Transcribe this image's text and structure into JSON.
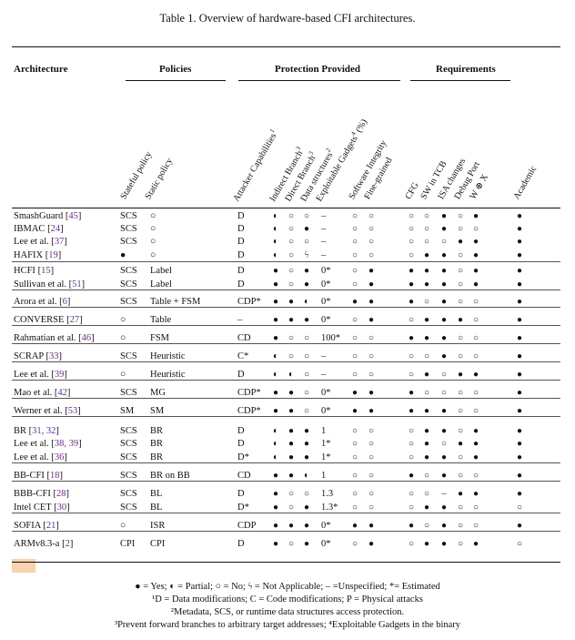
{
  "caption": "Table 1.  Overview of hardware-based CFI architectures.",
  "groups": [
    "Architecture",
    "Policies",
    "Protection Provided",
    "Requirements"
  ],
  "columns": [
    {
      "key": "stateful",
      "label": "Stateful policy"
    },
    {
      "key": "static",
      "label": "Static policy"
    },
    {
      "key": "atk",
      "label": "Attacker Capabilities",
      "sup": "1"
    },
    {
      "key": "ib",
      "label": "Indirect Branch",
      "sup": "3"
    },
    {
      "key": "db",
      "label": "Direct Branch",
      "sup": "3"
    },
    {
      "key": "ds",
      "label": "Data structures",
      "sup": "2"
    },
    {
      "key": "eg",
      "label": "Exploitable Gadgets",
      "sup": "4",
      "suffix": " (%)"
    },
    {
      "key": "si",
      "label": "Software Integrity"
    },
    {
      "key": "fg",
      "label": "Fine-grained"
    },
    {
      "key": "cfg",
      "label": "CFG"
    },
    {
      "key": "sw",
      "label": "SW in TCB"
    },
    {
      "key": "isa",
      "label": "ISA changes"
    },
    {
      "key": "dbg",
      "label": "Debug Port"
    },
    {
      "key": "wx",
      "label": "W ⊕ X"
    },
    {
      "key": "ac",
      "label": "Academic"
    }
  ],
  "rows": [
    {
      "name": "SmashGuard",
      "ref": "45",
      "stateful": "SCS",
      "static": "○",
      "atk": "D",
      "ib": "◐",
      "db": "○",
      "ds": "○",
      "eg": "–",
      "si": "○",
      "fg": "○",
      "req": [
        "○",
        "○",
        "●",
        "○",
        "●"
      ],
      "ac": "●"
    },
    {
      "name": "IBMAC",
      "ref": "24",
      "stateful": "SCS",
      "static": "○",
      "atk": "D",
      "ib": "◐",
      "db": "○",
      "ds": "●",
      "eg": "–",
      "si": "○",
      "fg": "○",
      "req": [
        "○",
        "○",
        "●",
        "○",
        "○"
      ],
      "ac": "●"
    },
    {
      "name": "Lee et al.",
      "ref": "37",
      "stateful": "SCS",
      "static": "○",
      "atk": "D",
      "ib": "◐",
      "db": "○",
      "ds": "○",
      "eg": "–",
      "si": "○",
      "fg": "○",
      "req": [
        "○",
        "○",
        "○",
        "●",
        "●"
      ],
      "ac": "●"
    },
    {
      "name": "HAFIX",
      "ref": "19",
      "stateful": "●",
      "static": "○",
      "atk": "D",
      "ib": "◐",
      "db": "○",
      "ds": "ϟ",
      "eg": "–",
      "si": "○",
      "fg": "○",
      "req": [
        "○",
        "●",
        "●",
        "○",
        "●"
      ],
      "ac": "●"
    },
    {
      "name": "HCFI",
      "ref": "15",
      "stateful": "SCS",
      "static": "Label",
      "atk": "D",
      "ib": "●",
      "db": "○",
      "ds": "●",
      "eg": "0*",
      "si": "○",
      "fg": "●",
      "req": [
        "●",
        "●",
        "●",
        "○",
        "●"
      ],
      "ac": "●"
    },
    {
      "name": "Sullivan et al.",
      "ref": "51",
      "stateful": "SCS",
      "static": "Label",
      "atk": "D",
      "ib": "●",
      "db": "○",
      "ds": "●",
      "eg": "0*",
      "si": "○",
      "fg": "●",
      "req": [
        "●",
        "●",
        "●",
        "○",
        "●"
      ],
      "ac": "●"
    },
    {
      "name": "Arora et al.",
      "ref": "6",
      "stateful": "SCS",
      "static": "Table + FSM",
      "atk": "CDP*",
      "ib": "●",
      "db": "●",
      "ds": "◐",
      "eg": "0*",
      "si": "●",
      "fg": "●",
      "req": [
        "●",
        "○",
        "●",
        "○",
        "○"
      ],
      "ac": "●"
    },
    {
      "name": "CONVERSE",
      "ref": "27",
      "stateful": "○",
      "static": "Table",
      "atk": "–",
      "ib": "●",
      "db": "●",
      "ds": "●",
      "eg": "0*",
      "si": "○",
      "fg": "●",
      "req": [
        "○",
        "●",
        "●",
        "●",
        "○"
      ],
      "ac": "●"
    },
    {
      "name": "Rahmatian et al.",
      "ref": "46",
      "stateful": "○",
      "static": "FSM",
      "atk": "CD",
      "ib": "●",
      "db": "○",
      "ds": "○",
      "eg": "100*",
      "si": "○",
      "fg": "○",
      "req": [
        "●",
        "●",
        "●",
        "○",
        "○"
      ],
      "ac": "●"
    },
    {
      "name": "SCRAP",
      "ref": "33",
      "stateful": "SCS",
      "static": "Heuristic",
      "atk": "C*",
      "ib": "◐",
      "db": "○",
      "ds": "○",
      "eg": "–",
      "si": "○",
      "fg": "○",
      "req": [
        "○",
        "○",
        "●",
        "○",
        "○"
      ],
      "ac": "●"
    },
    {
      "name": "Lee et al.",
      "ref": "39",
      "stateful": "○",
      "static": "Heuristic",
      "atk": "D",
      "ib": "◐",
      "db": "◐",
      "ds": "○",
      "eg": "–",
      "si": "○",
      "fg": "○",
      "req": [
        "○",
        "●",
        "○",
        "●",
        "●"
      ],
      "ac": "●"
    },
    {
      "name": "Mao et al.",
      "ref": "42",
      "stateful": "SCS",
      "static": "MG",
      "atk": "CDP*",
      "ib": "●",
      "db": "●",
      "ds": "○",
      "eg": "0*",
      "si": "●",
      "fg": "●",
      "req": [
        "●",
        "○",
        "○",
        "○",
        "○"
      ],
      "ac": "●"
    },
    {
      "name": "Werner et al.",
      "ref": "53",
      "stateful": "SM",
      "static": "SM",
      "atk": "CDP*",
      "ib": "●",
      "db": "●",
      "ds": "○",
      "eg": "0*",
      "si": "●",
      "fg": "●",
      "req": [
        "●",
        "●",
        "●",
        "○",
        "○"
      ],
      "ac": "●"
    },
    {
      "name": "BR",
      "ref": "31, 32",
      "stateful": "SCS",
      "static": "BR",
      "atk": "D",
      "ib": "◐",
      "db": "●",
      "ds": "●",
      "eg": "1",
      "si": "○",
      "fg": "○",
      "req": [
        "○",
        "●",
        "●",
        "○",
        "●"
      ],
      "ac": "●"
    },
    {
      "name": "Lee et al.",
      "ref": "38, 39",
      "stateful": "SCS",
      "static": "BR",
      "atk": "D",
      "ib": "◐",
      "db": "●",
      "ds": "●",
      "eg": "1*",
      "si": "○",
      "fg": "○",
      "req": [
        "○",
        "●",
        "○",
        "●",
        "●"
      ],
      "ac": "●"
    },
    {
      "name": "Lee et al.",
      "ref": "36",
      "stateful": "SCS",
      "static": "BR",
      "atk": "D*",
      "ib": "◐",
      "db": "●",
      "ds": "●",
      "eg": "1*",
      "si": "○",
      "fg": "○",
      "req": [
        "○",
        "●",
        "●",
        "○",
        "●"
      ],
      "ac": "●"
    },
    {
      "name": "BB-CFI",
      "ref": "18",
      "stateful": "SCS",
      "static": "BR on BB",
      "atk": "CD",
      "ib": "●",
      "db": "●",
      "ds": "◐",
      "eg": "1",
      "si": "○",
      "fg": "○",
      "req": [
        "●",
        "○",
        "●",
        "○",
        "○"
      ],
      "ac": "●"
    },
    {
      "name": "BBB-CFI",
      "ref": "28",
      "stateful": "SCS",
      "static": "BL",
      "atk": "D",
      "ib": "●",
      "db": "○",
      "ds": "○",
      "eg": "1.3",
      "si": "○",
      "fg": "○",
      "req": [
        "○",
        "○",
        "–",
        "●",
        "●"
      ],
      "ac": "●"
    },
    {
      "name": "Intel CET",
      "ref": "30",
      "stateful": "SCS",
      "static": "BL",
      "atk": "D*",
      "ib": "●",
      "db": "○",
      "ds": "●",
      "eg": "1.3*",
      "si": "○",
      "fg": "○",
      "req": [
        "○",
        "●",
        "●",
        "○",
        "○"
      ],
      "ac": "○"
    },
    {
      "name": "SOFIA",
      "ref": "21",
      "stateful": "○",
      "static": "ISR",
      "atk": "CDP",
      "ib": "●",
      "db": "●",
      "ds": "●",
      "eg": "0*",
      "si": "●",
      "fg": "●",
      "req": [
        "●",
        "○",
        "●",
        "○",
        "○"
      ],
      "ac": "●"
    },
    {
      "name": "ARMv8.3-a",
      "ref": "2",
      "stateful": "CPI",
      "static": "CPI",
      "atk": "D",
      "ib": "●",
      "db": "○",
      "ds": "●",
      "eg": "0*",
      "si": "○",
      "fg": "●",
      "req": [
        "○",
        "●",
        "●",
        "○",
        "●"
      ],
      "ac": "○"
    }
  ],
  "footnotes": [
    "● = Yes; ◐ = Partial; ○ = No; ϟ = Not Applicable; – =Unspecified; *= Estimated",
    "¹D = Data modifications; C = Code modifications; P = Physical attacks",
    "²Metadata, SCS, or runtime data structures access protection.",
    "³Prevent forward branches to arbitrary target addresses; ⁴Exploitable Gadgets in the binary"
  ]
}
